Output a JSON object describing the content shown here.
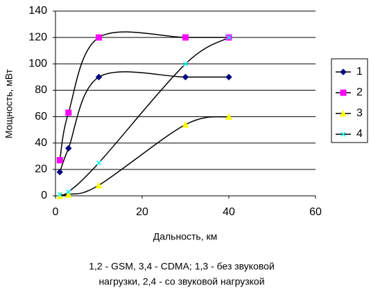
{
  "chart_data": {
    "type": "line",
    "smooth": true,
    "x_label": "Дальность, км",
    "y_label": "Мощность, мВт",
    "caption": [
      "1,2 - GSM, 3,4 - CDMA; 1,3 - без звуковой",
      "нагрузки, 2,4 - со звуковой нагрузкой"
    ],
    "x": [
      1,
      3,
      10,
      30,
      40
    ],
    "series": [
      {
        "name": "1",
        "color": "#000080",
        "marker": "diamond",
        "values": [
          18,
          36,
          90,
          90,
          90
        ]
      },
      {
        "name": "2",
        "color": "#ff00ff",
        "marker": "square",
        "values": [
          27,
          63,
          120,
          120,
          120
        ]
      },
      {
        "name": "3",
        "color": "#ffff00",
        "marker": "triangle",
        "values": [
          0,
          1,
          8,
          54,
          60
        ]
      },
      {
        "name": "4",
        "color": "#00ffff",
        "marker": "x",
        "values": [
          1,
          3,
          25,
          100,
          120
        ]
      }
    ],
    "line_color": "#000000",
    "xlim": [
      0,
      60
    ],
    "xticks": [
      0,
      20,
      40,
      60
    ],
    "ylim": [
      0,
      140
    ],
    "yticks": [
      0,
      20,
      40,
      60,
      80,
      100,
      120,
      140
    ],
    "grid": true,
    "legend": "right"
  }
}
